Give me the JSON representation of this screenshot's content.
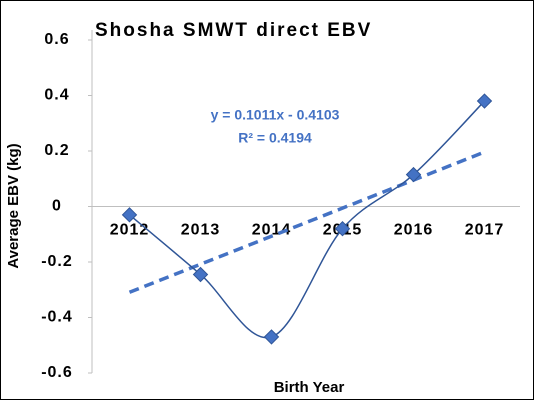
{
  "chart_data": {
    "type": "line",
    "title": "Shosha SMWT direct EBV",
    "x_label": "Birth Year",
    "y_label": "Average EBV (kg)",
    "categories": [
      "2012",
      "2013",
      "2014",
      "2015",
      "2016",
      "2017"
    ],
    "series": [
      {
        "name": "Average EBV",
        "color": "#4472c4",
        "values": [
          -0.03,
          -0.245,
          -0.47,
          -0.08,
          0.115,
          0.38
        ]
      }
    ],
    "trendline": {
      "slope": 0.1011,
      "intercept": -0.4103,
      "equation": "y = 0.1011x - 0.4103",
      "r_squared": "R² = 0.4194",
      "color": "#4472c4"
    },
    "ylim": [
      -0.6,
      0.6
    ],
    "yticks": [
      -0.6,
      -0.4,
      -0.2,
      0,
      0.2,
      0.4,
      0.6
    ]
  }
}
